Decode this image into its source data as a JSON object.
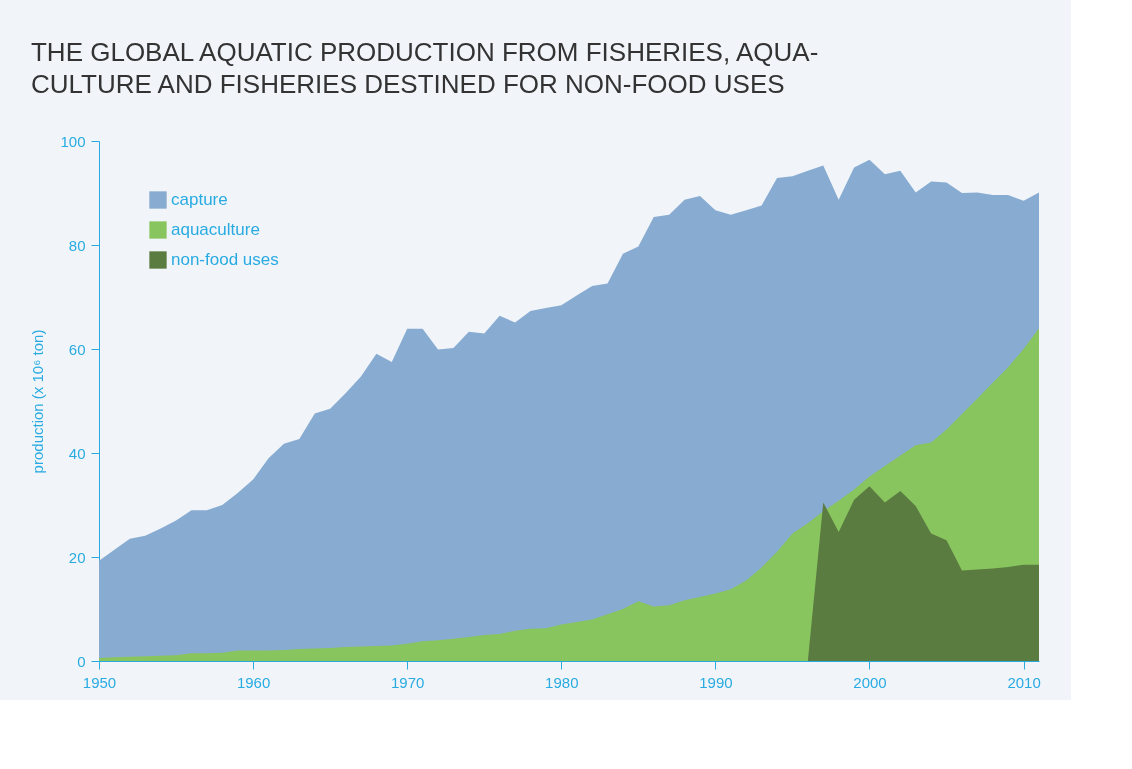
{
  "chart_data": {
    "type": "area",
    "title": "THE GLOBAL AQUATIC PRODUCTION FROM FISHERIES, AQUA-\nCULTURE AND FISHERIES DESTINED FOR NON-FOOD USES",
    "ylabel": "production (x 10⁶ ton)",
    "x": [
      1950,
      1951,
      1952,
      1953,
      1954,
      1955,
      1956,
      1957,
      1958,
      1959,
      1960,
      1961,
      1962,
      1963,
      1964,
      1965,
      1966,
      1967,
      1968,
      1969,
      1970,
      1971,
      1972,
      1973,
      1974,
      1975,
      1976,
      1977,
      1978,
      1979,
      1980,
      1981,
      1982,
      1983,
      1984,
      1985,
      1986,
      1987,
      1988,
      1989,
      1990,
      1991,
      1992,
      1993,
      1994,
      1995,
      1996,
      1997,
      1998,
      1999,
      2000,
      2001,
      2002,
      2003,
      2004,
      2005,
      2006,
      2007,
      2008,
      2009,
      2010,
      2011
    ],
    "series": [
      {
        "name": "capture",
        "color": "#87abd1",
        "values": [
          19.3,
          21.4,
          23.5,
          24.1,
          25.5,
          27,
          29,
          29,
          30,
          32.3,
          34.9,
          39,
          41.8,
          42.7,
          47.6,
          48.5,
          51.5,
          54.7,
          59.1,
          57.5,
          63.9,
          63.9,
          59.9,
          60.2,
          63.3,
          63,
          66.4,
          65.1,
          67.3,
          67.9,
          68.4,
          70.3,
          72.1,
          72.6,
          78.3,
          79.7,
          85.4,
          85.8,
          88.7,
          89.4,
          86.7,
          85.8,
          86.7,
          87.6,
          92.9,
          93.2,
          94.3,
          95.3,
          88.7,
          94.9,
          96.4,
          93.6,
          94.3,
          90.1,
          92.2,
          92,
          90,
          90.1,
          89.6,
          89.6,
          88.5,
          90.1
        ]
      },
      {
        "name": "aquaculture",
        "color": "#89c55e",
        "values": [
          0.6,
          0.7,
          0.8,
          0.9,
          1.0,
          1.1,
          1.5,
          1.5,
          1.6,
          2.0,
          2.0,
          2.0,
          2.1,
          2.3,
          2.4,
          2.5,
          2.7,
          2.8,
          2.9,
          3.0,
          3.3,
          3.8,
          4.0,
          4.3,
          4.6,
          5.0,
          5.2,
          5.8,
          6.2,
          6.3,
          7.0,
          7.5,
          8.0,
          9.0,
          10.0,
          11.5,
          10.5,
          10.7,
          11.7,
          12.3,
          13.0,
          13.8,
          15.5,
          18,
          21,
          24.5,
          26.5,
          28.8,
          30.8,
          33,
          35.5,
          37.5,
          39.5,
          41.5,
          42,
          44.5,
          47.5,
          50.5,
          53.5,
          56.5,
          60,
          64
        ]
      },
      {
        "name": "non-food uses",
        "color": "#5a7c40",
        "x": [
          1996,
          1997,
          1998,
          1999,
          2000,
          2001,
          2002,
          2003,
          2004,
          2005,
          2006,
          2007,
          2008,
          2009,
          2010,
          2011
        ],
        "values": [
          0,
          30.5,
          24.8,
          31,
          33.6,
          30.5,
          32.7,
          29.8,
          24.5,
          23.2,
          17.4,
          17.6,
          17.8,
          18.1,
          18.5,
          18.5
        ]
      }
    ],
    "xlim": [
      1950,
      2011
    ],
    "xticks": [
      1950,
      1960,
      1970,
      1980,
      1990,
      2000,
      2010
    ],
    "ylim": [
      0,
      100
    ],
    "yticks": [
      0,
      20,
      40,
      60,
      80,
      100
    ],
    "legend": "top left",
    "grid": false
  }
}
